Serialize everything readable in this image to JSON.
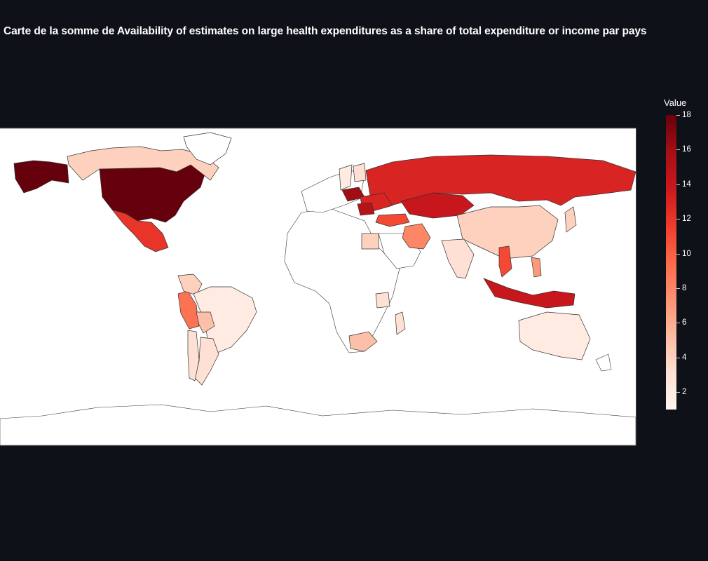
{
  "title": "Carte de la somme de Availability of estimates on large health expenditures as a share of total expenditure or income par pays",
  "legend": {
    "title": "Value",
    "min": 1,
    "max": 18,
    "ticks": [
      "2",
      "4",
      "6",
      "8",
      "10",
      "12",
      "14",
      "16",
      "18"
    ]
  },
  "colors": {
    "background": "#0e1117",
    "land_empty": "#ffffff",
    "border": "#333333",
    "scale": [
      "#fff5f0",
      "#fee0d2",
      "#fcbba1",
      "#fc9272",
      "#fb6a4a",
      "#ef3b2c",
      "#cb181d",
      "#a50f15",
      "#67000d"
    ]
  },
  "chart_data": {
    "type": "choropleth",
    "projection": "equirectangular",
    "colorscale": "Reds",
    "value_range": [
      1,
      18
    ],
    "regions": [
      {
        "name": "United States",
        "value": 18
      },
      {
        "name": "Alaska",
        "value": 18
      },
      {
        "name": "Canada",
        "value": 4
      },
      {
        "name": "Greenland",
        "value": null
      },
      {
        "name": "Mexico",
        "value": 12
      },
      {
        "name": "Peru",
        "value": 9
      },
      {
        "name": "Colombia",
        "value": 4
      },
      {
        "name": "Brazil",
        "value": 2
      },
      {
        "name": "Bolivia",
        "value": 5
      },
      {
        "name": "Argentina",
        "value": 3
      },
      {
        "name": "Chile",
        "value": 3
      },
      {
        "name": "Russia",
        "value": 13
      },
      {
        "name": "Kazakhstan",
        "value": 14
      },
      {
        "name": "China",
        "value": 4
      },
      {
        "name": "Iran",
        "value": 8
      },
      {
        "name": "Turkey",
        "value": 11
      },
      {
        "name": "Poland",
        "value": 16
      },
      {
        "name": "Ukraine",
        "value": 13
      },
      {
        "name": "Romania",
        "value": 15
      },
      {
        "name": "Indonesia",
        "value": 14
      },
      {
        "name": "Vietnam",
        "value": 11
      },
      {
        "name": "Philippines",
        "value": 7
      },
      {
        "name": "India",
        "value": 3
      },
      {
        "name": "Australia",
        "value": 2
      },
      {
        "name": "South Africa",
        "value": 5
      },
      {
        "name": "Madagascar",
        "value": 3
      },
      {
        "name": "Japan",
        "value": 4
      },
      {
        "name": "Finland",
        "value": 3
      },
      {
        "name": "Sweden",
        "value": 2
      },
      {
        "name": "Egypt",
        "value": 4
      },
      {
        "name": "Tanzania",
        "value": 3
      }
    ]
  }
}
